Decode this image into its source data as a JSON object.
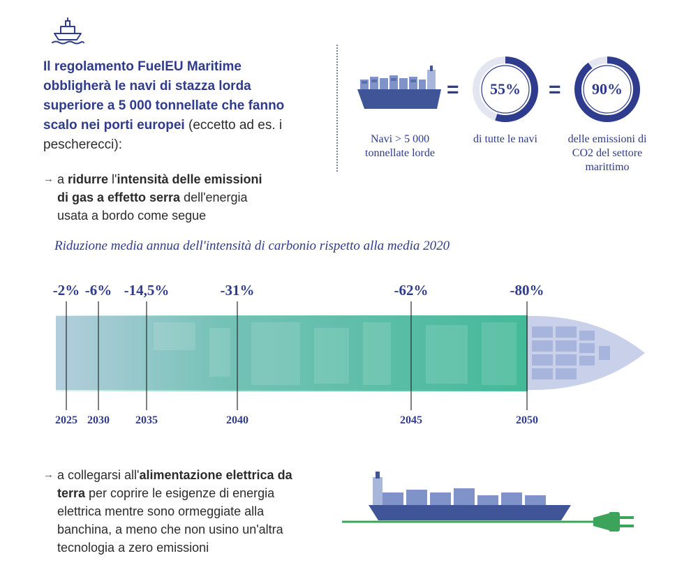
{
  "colors": {
    "navy": "#2f3b8c",
    "teal": "#3db894",
    "ship_blue": "#6c7fb8",
    "plug_green": "#3ba35a"
  },
  "icons": {
    "header": "ship-icon"
  },
  "intro": {
    "bold": "Il regolamento FuelEU Maritime obbligherà le navi di stazza lorda superiore a 5 000 tonnellate che fanno scalo nei porti europei",
    "normal": " (eccetto ad es. i pescherecci):"
  },
  "bullet1": {
    "arrow": "→",
    "p1": "a ",
    "b1": "ridurre",
    "p2": " l'",
    "b2": "intensità delle emissioni di gas a effetto serra",
    "p3": " dell'energia usata a bordo come segue"
  },
  "stats": {
    "ships_caption": "Navi > 5 000 tonnellate lorde",
    "eq1": "=",
    "eq2": "=",
    "share_ships": {
      "label": "55%",
      "value": 55,
      "caption": "di tutte le navi"
    },
    "share_emissions": {
      "label": "90%",
      "value": 90,
      "caption": "delle emissioni di CO2 del settore marittimo"
    }
  },
  "chart_data": {
    "type": "bar",
    "title": "Riduzione media annua dell'intensità di carbonio rispetto alla media 2020",
    "categories": [
      "2025",
      "2030",
      "2035",
      "2040",
      "2045",
      "2050"
    ],
    "values": [
      -2,
      -6,
      -14.5,
      -31,
      -62,
      -80
    ],
    "labels": [
      "-2%",
      "-6%",
      "-14,5%",
      "-31%",
      "-62%",
      "-80%"
    ],
    "x": [
      2025,
      2030,
      2035,
      2040,
      2045,
      2050
    ],
    "xlim": [
      2025,
      2050
    ]
  },
  "bullet2": {
    "arrow": "→",
    "p1": "a collegarsi all'",
    "b1": "alimentazione elettrica da terra",
    "p2": " per coprire le esigenze di energia elettrica mentre sono ormeggiate alla banchina, a meno che non usino un'altra tecnologia a zero emissioni"
  }
}
